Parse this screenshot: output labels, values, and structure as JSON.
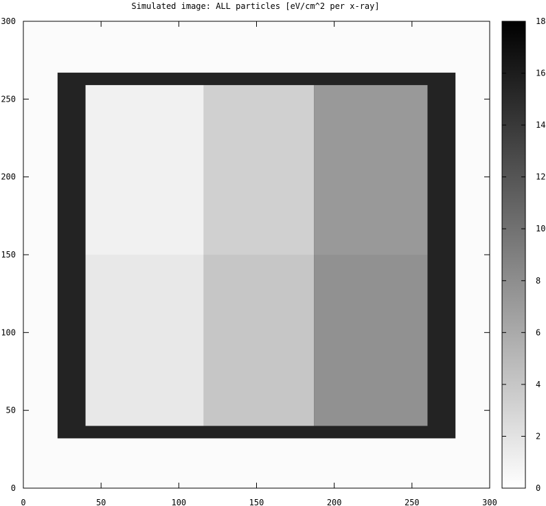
{
  "chart_data": {
    "type": "heatmap",
    "title": "Simulated image: ALL particles [eV/cm^2 per x-ray]",
    "xlabel": "",
    "ylabel": "",
    "xlim": [
      0,
      300
    ],
    "ylim": [
      0,
      300
    ],
    "x_ticks": [
      0,
      50,
      100,
      150,
      200,
      250,
      300
    ],
    "y_ticks": [
      0,
      50,
      100,
      150,
      200,
      250,
      300
    ],
    "colorbar": {
      "range": [
        0,
        18
      ],
      "ticks": [
        0,
        2,
        4,
        6,
        8,
        10,
        12,
        14,
        16,
        18
      ],
      "colormap": "grayscale",
      "low_color": "#ffffff",
      "high_color": "#000000"
    },
    "background_value": 0.3,
    "regions": [
      {
        "name": "frame",
        "x": [
          22,
          278
        ],
        "y": [
          32,
          267
        ],
        "value": 15.5
      },
      {
        "name": "left-upper",
        "x": [
          40,
          116
        ],
        "y": [
          150,
          259
        ],
        "value": 1.0
      },
      {
        "name": "left-lower",
        "x": [
          40,
          116
        ],
        "y": [
          40,
          150
        ],
        "value": 1.6
      },
      {
        "name": "middle-upper",
        "x": [
          116,
          187
        ],
        "y": [
          150,
          259
        ],
        "value": 3.3
      },
      {
        "name": "middle-lower",
        "x": [
          116,
          187
        ],
        "y": [
          40,
          150
        ],
        "value": 4.0
      },
      {
        "name": "right-upper",
        "x": [
          187,
          260
        ],
        "y": [
          150,
          259
        ],
        "value": 7.2
      },
      {
        "name": "right-lower",
        "x": [
          187,
          260
        ],
        "y": [
          40,
          150
        ],
        "value": 7.8
      }
    ],
    "grid": false
  }
}
